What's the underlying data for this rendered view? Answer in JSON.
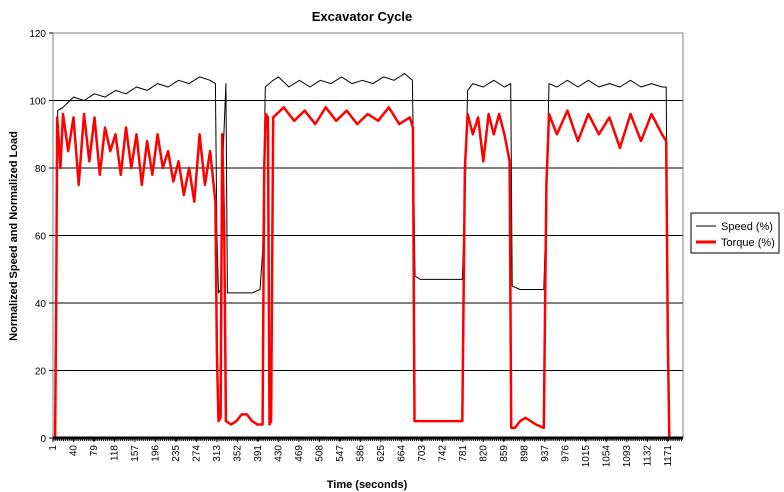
{
  "chart_data": {
    "type": "line",
    "title": "Excavator Cycle",
    "xlabel": "Time (seconds)",
    "ylabel": "Normalized Speed and Normalized Load",
    "xlim": [
      1,
      1200
    ],
    "ylim": [
      0,
      120
    ],
    "yticks": [
      0,
      20,
      40,
      60,
      80,
      100,
      120
    ],
    "xticks": [
      1,
      40,
      79,
      118,
      157,
      196,
      235,
      274,
      313,
      352,
      391,
      430,
      469,
      508,
      547,
      586,
      625,
      664,
      703,
      742,
      781,
      820,
      859,
      898,
      937,
      976,
      1015,
      1054,
      1093,
      1132,
      1171
    ],
    "grid": "horizontal",
    "legend_position": "right",
    "series": [
      {
        "name": "Speed (%)",
        "color": "#000000",
        "points": [
          [
            1,
            0
          ],
          [
            5,
            0
          ],
          [
            8,
            60
          ],
          [
            10,
            97
          ],
          [
            20,
            98
          ],
          [
            40,
            101
          ],
          [
            60,
            100
          ],
          [
            80,
            102
          ],
          [
            100,
            101
          ],
          [
            120,
            103
          ],
          [
            140,
            102
          ],
          [
            160,
            104
          ],
          [
            180,
            103
          ],
          [
            200,
            105
          ],
          [
            220,
            104
          ],
          [
            240,
            106
          ],
          [
            260,
            105
          ],
          [
            280,
            107
          ],
          [
            300,
            106
          ],
          [
            310,
            105
          ],
          [
            313,
            60
          ],
          [
            316,
            43
          ],
          [
            320,
            44
          ],
          [
            325,
            85
          ],
          [
            330,
            105
          ],
          [
            333,
            43
          ],
          [
            340,
            43
          ],
          [
            360,
            43
          ],
          [
            380,
            43
          ],
          [
            395,
            44
          ],
          [
            400,
            55
          ],
          [
            405,
            104
          ],
          [
            420,
            106
          ],
          [
            430,
            107
          ],
          [
            450,
            104
          ],
          [
            470,
            106
          ],
          [
            490,
            104
          ],
          [
            510,
            106
          ],
          [
            530,
            105
          ],
          [
            550,
            107
          ],
          [
            570,
            105
          ],
          [
            590,
            106
          ],
          [
            610,
            105
          ],
          [
            630,
            107
          ],
          [
            650,
            106
          ],
          [
            670,
            108
          ],
          [
            685,
            106
          ],
          [
            690,
            48
          ],
          [
            700,
            47
          ],
          [
            720,
            47
          ],
          [
            740,
            47
          ],
          [
            760,
            47
          ],
          [
            780,
            47
          ],
          [
            785,
            70
          ],
          [
            790,
            103
          ],
          [
            800,
            105
          ],
          [
            820,
            104
          ],
          [
            840,
            106
          ],
          [
            860,
            104
          ],
          [
            872,
            105
          ],
          [
            875,
            45
          ],
          [
            890,
            44
          ],
          [
            910,
            44
          ],
          [
            935,
            44
          ],
          [
            940,
            70
          ],
          [
            945,
            105
          ],
          [
            960,
            104
          ],
          [
            980,
            106
          ],
          [
            1000,
            104
          ],
          [
            1020,
            106
          ],
          [
            1040,
            104
          ],
          [
            1060,
            105
          ],
          [
            1080,
            104
          ],
          [
            1100,
            106
          ],
          [
            1120,
            104
          ],
          [
            1140,
            105
          ],
          [
            1160,
            104
          ],
          [
            1168,
            104
          ],
          [
            1171,
            30
          ],
          [
            1174,
            0
          ],
          [
            1200,
            0
          ]
        ]
      },
      {
        "name": "Torque (%)",
        "color": "#ff0000",
        "points": [
          [
            1,
            0
          ],
          [
            5,
            0
          ],
          [
            7,
            40
          ],
          [
            9,
            95
          ],
          [
            15,
            80
          ],
          [
            20,
            96
          ],
          [
            30,
            85
          ],
          [
            40,
            95
          ],
          [
            50,
            75
          ],
          [
            60,
            96
          ],
          [
            70,
            82
          ],
          [
            80,
            95
          ],
          [
            90,
            78
          ],
          [
            100,
            92
          ],
          [
            110,
            85
          ],
          [
            120,
            90
          ],
          [
            130,
            78
          ],
          [
            140,
            92
          ],
          [
            150,
            80
          ],
          [
            160,
            90
          ],
          [
            170,
            75
          ],
          [
            180,
            88
          ],
          [
            190,
            78
          ],
          [
            200,
            90
          ],
          [
            210,
            80
          ],
          [
            220,
            85
          ],
          [
            230,
            76
          ],
          [
            240,
            82
          ],
          [
            250,
            72
          ],
          [
            260,
            80
          ],
          [
            270,
            70
          ],
          [
            280,
            90
          ],
          [
            290,
            75
          ],
          [
            300,
            85
          ],
          [
            310,
            70
          ],
          [
            313,
            25
          ],
          [
            316,
            5
          ],
          [
            320,
            6
          ],
          [
            323,
            90
          ],
          [
            327,
            60
          ],
          [
            330,
            5
          ],
          [
            340,
            4
          ],
          [
            350,
            5
          ],
          [
            360,
            7
          ],
          [
            370,
            7
          ],
          [
            380,
            5
          ],
          [
            390,
            4
          ],
          [
            400,
            4
          ],
          [
            403,
            80
          ],
          [
            406,
            96
          ],
          [
            410,
            95
          ],
          [
            413,
            4
          ],
          [
            416,
            5
          ],
          [
            420,
            95
          ],
          [
            440,
            98
          ],
          [
            460,
            94
          ],
          [
            480,
            97
          ],
          [
            500,
            93
          ],
          [
            520,
            98
          ],
          [
            540,
            94
          ],
          [
            560,
            97
          ],
          [
            580,
            93
          ],
          [
            600,
            96
          ],
          [
            620,
            94
          ],
          [
            640,
            98
          ],
          [
            660,
            93
          ],
          [
            680,
            95
          ],
          [
            686,
            92
          ],
          [
            689,
            5
          ],
          [
            700,
            5
          ],
          [
            720,
            5
          ],
          [
            740,
            5
          ],
          [
            760,
            5
          ],
          [
            780,
            5
          ],
          [
            785,
            80
          ],
          [
            790,
            96
          ],
          [
            800,
            90
          ],
          [
            810,
            95
          ],
          [
            820,
            82
          ],
          [
            830,
            96
          ],
          [
            840,
            90
          ],
          [
            850,
            96
          ],
          [
            860,
            90
          ],
          [
            870,
            82
          ],
          [
            873,
            3
          ],
          [
            880,
            3
          ],
          [
            890,
            5
          ],
          [
            900,
            6
          ],
          [
            910,
            5
          ],
          [
            920,
            4
          ],
          [
            935,
            3
          ],
          [
            940,
            75
          ],
          [
            945,
            96
          ],
          [
            960,
            90
          ],
          [
            980,
            97
          ],
          [
            1000,
            88
          ],
          [
            1020,
            96
          ],
          [
            1040,
            90
          ],
          [
            1060,
            95
          ],
          [
            1080,
            86
          ],
          [
            1100,
            96
          ],
          [
            1120,
            88
          ],
          [
            1140,
            96
          ],
          [
            1160,
            90
          ],
          [
            1168,
            88
          ],
          [
            1171,
            30
          ],
          [
            1174,
            0
          ],
          [
            1200,
            0
          ]
        ]
      }
    ]
  }
}
